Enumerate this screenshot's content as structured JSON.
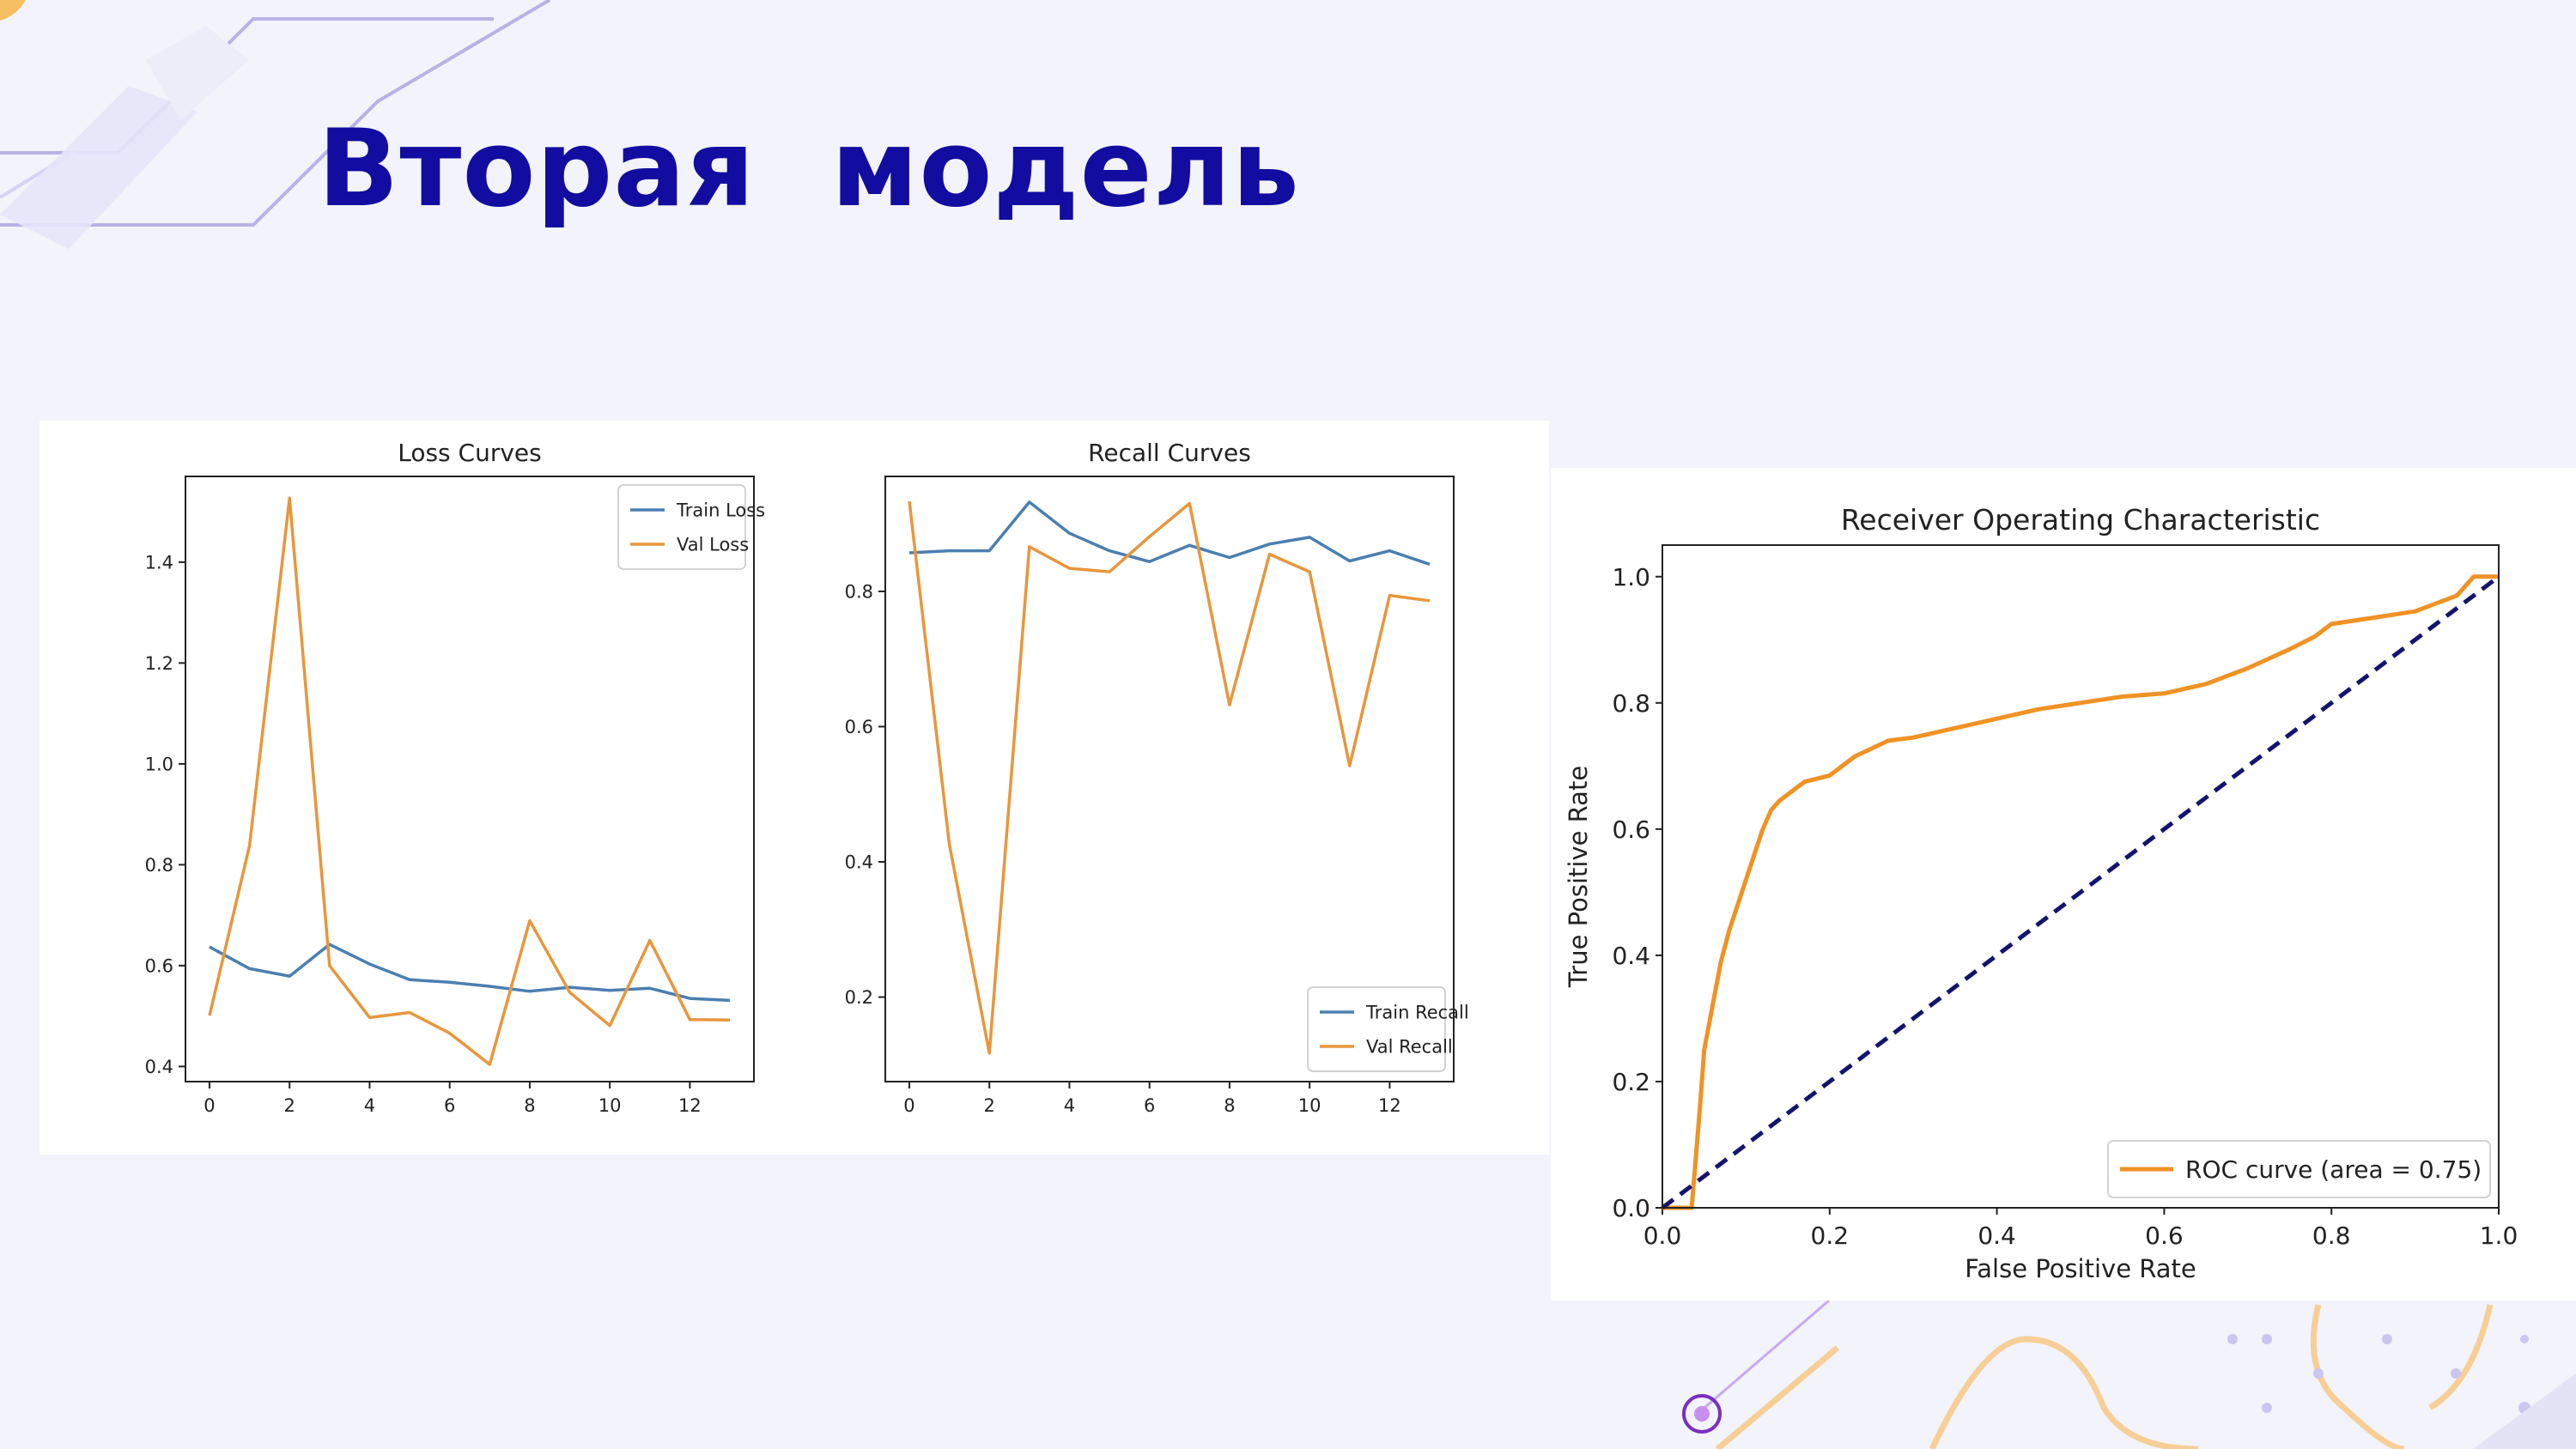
{
  "slide": {
    "title": "Вторая  модель"
  },
  "colors": {
    "title": "#120ca0",
    "train": "#4a7fb0",
    "val": "#e8963c",
    "roc": "#f09224",
    "diagonal": "#14136e"
  },
  "chart_data": [
    {
      "type": "line",
      "title": "Loss Curves",
      "xlabel": "",
      "ylabel": "",
      "xlim": [
        -0.6,
        13.6
      ],
      "ylim": [
        0.37,
        1.57
      ],
      "xticks": [
        0,
        2,
        4,
        6,
        8,
        10,
        12
      ],
      "yticks": [
        0.4,
        0.6,
        0.8,
        1.0,
        1.2,
        1.4
      ],
      "ytick_labels": [
        "0.4",
        "0.6",
        "0.8",
        "1.0",
        "1.2",
        "1.4"
      ],
      "legend_position": "top-right",
      "grid": false,
      "x": [
        0,
        1,
        2,
        3,
        4,
        5,
        6,
        7,
        8,
        9,
        10,
        11,
        12,
        13
      ],
      "series": [
        {
          "name": "Train Loss",
          "color": "#4a7fb0",
          "values": [
            0.637,
            0.594,
            0.579,
            0.642,
            0.603,
            0.572,
            0.567,
            0.559,
            0.549,
            0.557,
            0.551,
            0.555,
            0.535,
            0.531
          ]
        },
        {
          "name": "Val Loss",
          "color": "#e8963c",
          "values": [
            0.501,
            0.838,
            1.527,
            0.6,
            0.497,
            0.507,
            0.466,
            0.404,
            0.689,
            0.547,
            0.481,
            0.65,
            0.493,
            0.492
          ]
        }
      ]
    },
    {
      "type": "line",
      "title": "Recall Curves",
      "xlabel": "",
      "ylabel": "",
      "xlim": [
        -0.6,
        13.6
      ],
      "ylim": [
        0.075,
        0.97
      ],
      "xticks": [
        0,
        2,
        4,
        6,
        8,
        10,
        12
      ],
      "yticks": [
        0.2,
        0.4,
        0.6,
        0.8
      ],
      "ytick_labels": [
        "0.2",
        "0.4",
        "0.6",
        "0.8"
      ],
      "legend_position": "bottom-right",
      "grid": false,
      "x": [
        0,
        1,
        2,
        3,
        4,
        5,
        6,
        7,
        8,
        9,
        10,
        11,
        12,
        13
      ],
      "series": [
        {
          "name": "Train Recall",
          "color": "#4a7fb0",
          "values": [
            0.857,
            0.86,
            0.86,
            0.932,
            0.886,
            0.86,
            0.844,
            0.868,
            0.85,
            0.87,
            0.88,
            0.845,
            0.86,
            0.84
          ]
        },
        {
          "name": "Val Recall",
          "color": "#e8963c",
          "values": [
            0.933,
            0.426,
            0.117,
            0.866,
            0.834,
            0.829,
            0.881,
            0.93,
            0.632,
            0.855,
            0.829,
            0.542,
            0.794,
            0.786
          ]
        }
      ]
    },
    {
      "type": "line",
      "title": "Receiver Operating Characteristic",
      "xlabel": "False Positive Rate",
      "ylabel": "True Positive Rate",
      "xlim": [
        0.0,
        1.0
      ],
      "ylim": [
        0.0,
        1.05
      ],
      "xticks": [
        0.0,
        0.2,
        0.4,
        0.6,
        0.8,
        1.0
      ],
      "xtick_labels": [
        "0.0",
        "0.2",
        "0.4",
        "0.6",
        "0.8",
        "1.0"
      ],
      "yticks": [
        0.0,
        0.2,
        0.4,
        0.6,
        0.8,
        1.0
      ],
      "ytick_labels": [
        "0.0",
        "0.2",
        "0.4",
        "0.6",
        "0.8",
        "1.0"
      ],
      "legend_position": "bottom-right",
      "grid": false,
      "series": [
        {
          "name": "ROC curve (area = 0.75)",
          "color": "#f09224",
          "style": "solid",
          "x": [
            0.0,
            0.035,
            0.04,
            0.045,
            0.05,
            0.06,
            0.07,
            0.08,
            0.09,
            0.1,
            0.11,
            0.12,
            0.13,
            0.14,
            0.15,
            0.17,
            0.2,
            0.23,
            0.27,
            0.3,
            0.35,
            0.4,
            0.45,
            0.5,
            0.55,
            0.6,
            0.65,
            0.7,
            0.75,
            0.78,
            0.8,
            0.85,
            0.9,
            0.95,
            0.97,
            1.0
          ],
          "y": [
            0.0,
            0.0,
            0.08,
            0.16,
            0.25,
            0.32,
            0.39,
            0.44,
            0.48,
            0.52,
            0.56,
            0.6,
            0.63,
            0.645,
            0.655,
            0.675,
            0.685,
            0.715,
            0.74,
            0.745,
            0.76,
            0.775,
            0.79,
            0.8,
            0.81,
            0.815,
            0.83,
            0.855,
            0.885,
            0.905,
            0.925,
            0.935,
            0.945,
            0.97,
            1.0,
            1.0
          ]
        },
        {
          "name": "",
          "color": "#14136e",
          "style": "dashed",
          "x": [
            0.0,
            1.0
          ],
          "y": [
            0.0,
            1.0
          ]
        }
      ],
      "legend_entries": [
        "ROC curve (area = 0.75)"
      ]
    }
  ]
}
